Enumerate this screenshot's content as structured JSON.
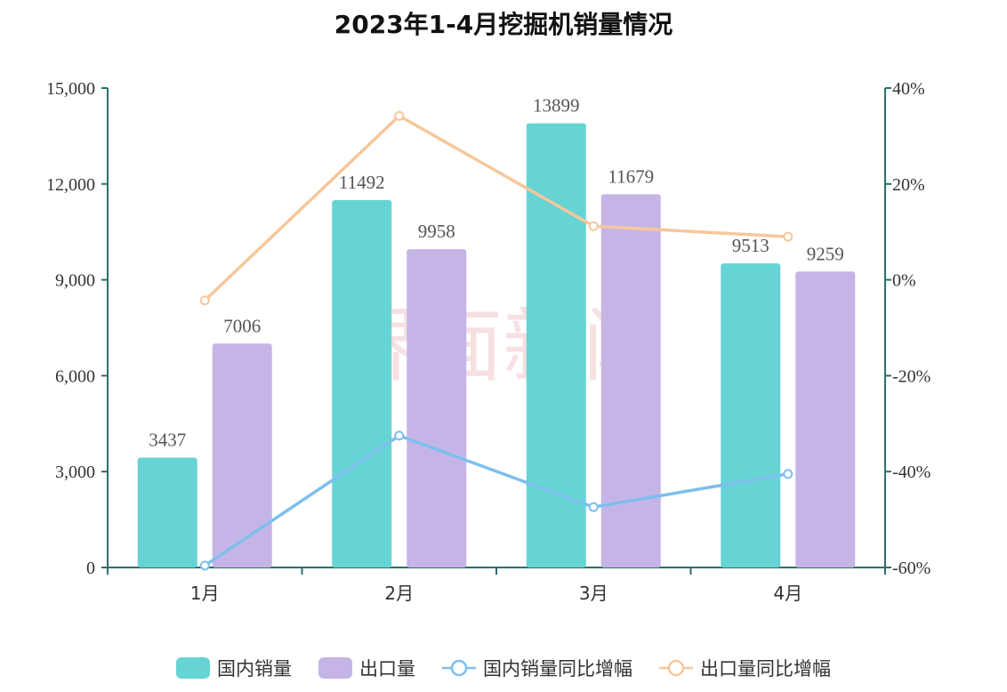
{
  "chart_data": {
    "type": "bar",
    "title": "2023年1-4月挖掘机销量情况",
    "categories": [
      "1月",
      "2月",
      "3月",
      "4月"
    ],
    "series": [
      {
        "name": "国内销量",
        "kind": "bar",
        "axis": "left",
        "color": "#66d4d4",
        "values": [
          3437,
          11492,
          13899,
          9513
        ]
      },
      {
        "name": "出口量",
        "kind": "bar",
        "axis": "left",
        "color": "#c5b5e6",
        "values": [
          7006,
          9958,
          11679,
          9259
        ]
      },
      {
        "name": "国内销量同比增幅",
        "kind": "line",
        "axis": "right",
        "color": "#7dbfee",
        "values": [
          -59.6,
          -32.5,
          -47.4,
          -40.5
        ]
      },
      {
        "name": "出口量同比增幅",
        "kind": "line",
        "axis": "right",
        "color": "#f6c79b",
        "values": [
          -4.3,
          34.2,
          11.2,
          9.0
        ]
      }
    ],
    "left_axis": {
      "ylim": [
        0,
        15000
      ],
      "ticks": [
        0,
        3000,
        6000,
        9000,
        12000,
        15000
      ],
      "tick_labels": [
        "0",
        "3,000",
        "6,000",
        "9,000",
        "12,000",
        "15,000"
      ]
    },
    "right_axis": {
      "ylim": [
        -60,
        40
      ],
      "ticks": [
        -60,
        -40,
        -20,
        0,
        20,
        40
      ],
      "tick_labels": [
        "-60%",
        "-40%",
        "-20%",
        "0%",
        "20%",
        "40%"
      ]
    },
    "watermark": "界面新闻",
    "legend": "bottom-center",
    "axis_color": "#2e6e6e"
  }
}
